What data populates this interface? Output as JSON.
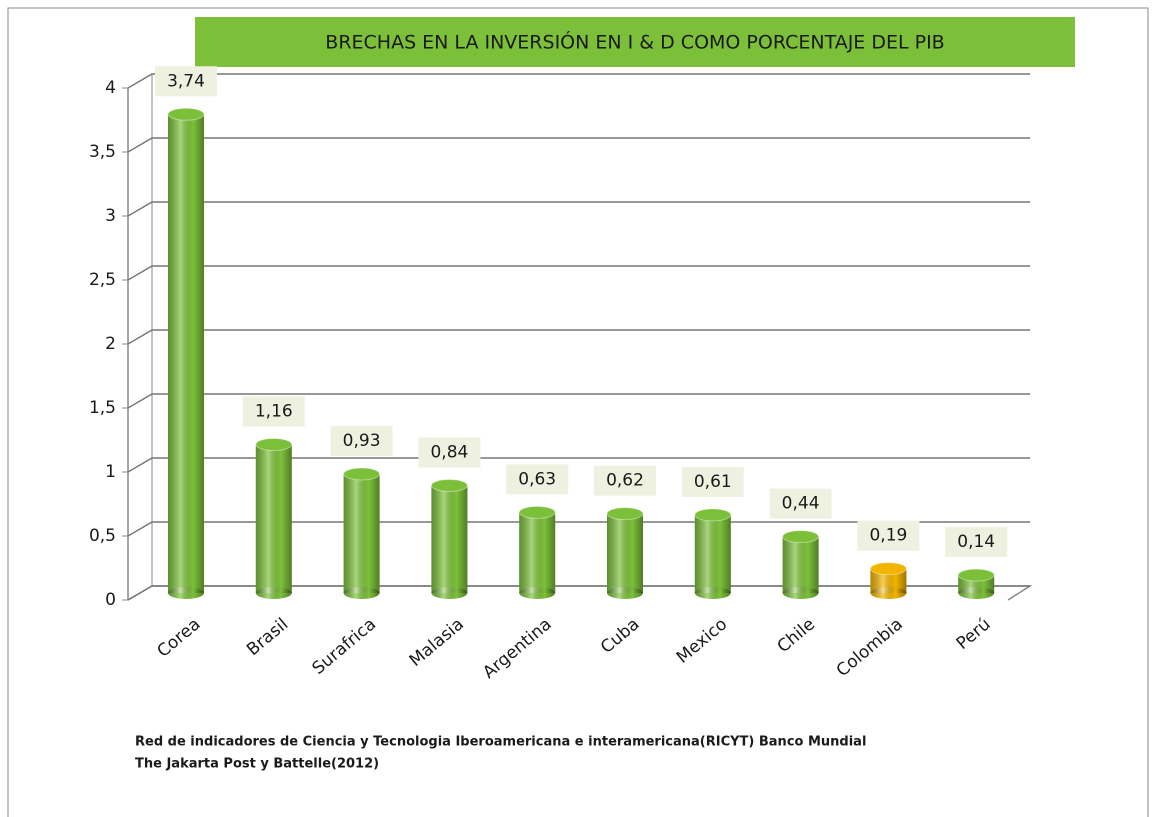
{
  "chart_data": {
    "type": "bar",
    "title": "BRECHAS EN LA INVERSIÓN EN I & D  COMO PORCENTAJE DEL PIB",
    "categories": [
      "Corea",
      "Brasil",
      "Surafrica",
      "Malasia",
      "Argentina",
      "Cuba",
      "Mexico",
      "Chile",
      "Colombia",
      "Perú"
    ],
    "values": [
      3.74,
      1.16,
      0.93,
      0.84,
      0.63,
      0.62,
      0.61,
      0.44,
      0.19,
      0.14
    ],
    "value_labels": [
      "3,74",
      "1,16",
      "0,93",
      "0,84",
      "0,63",
      "0,62",
      "0,61",
      "0,44",
      "0,19",
      "0,14"
    ],
    "colors": [
      "#7cc03a",
      "#7cc03a",
      "#7cc03a",
      "#7cc03a",
      "#7cc03a",
      "#7cc03a",
      "#7cc03a",
      "#7cc03a",
      "#f2b400",
      "#7cc03a"
    ],
    "ylim": [
      0,
      4
    ],
    "yticks": [
      0,
      {
        "value": 0.5,
        "label": "0,5"
      },
      1,
      {
        "value": 1.5,
        "label": "1,5"
      },
      2,
      {
        "value": 2.5,
        "label": "2,5"
      },
      3,
      {
        "value": 3.5,
        "label": "3,5"
      },
      4
    ],
    "grid": true,
    "source": [
      "Red de indicadores de Ciencia y Tecnologia Iberoamericana e interamericana(RICYT) Banco Mundial",
      "The Jakarta Post y Battelle(2012)"
    ]
  }
}
